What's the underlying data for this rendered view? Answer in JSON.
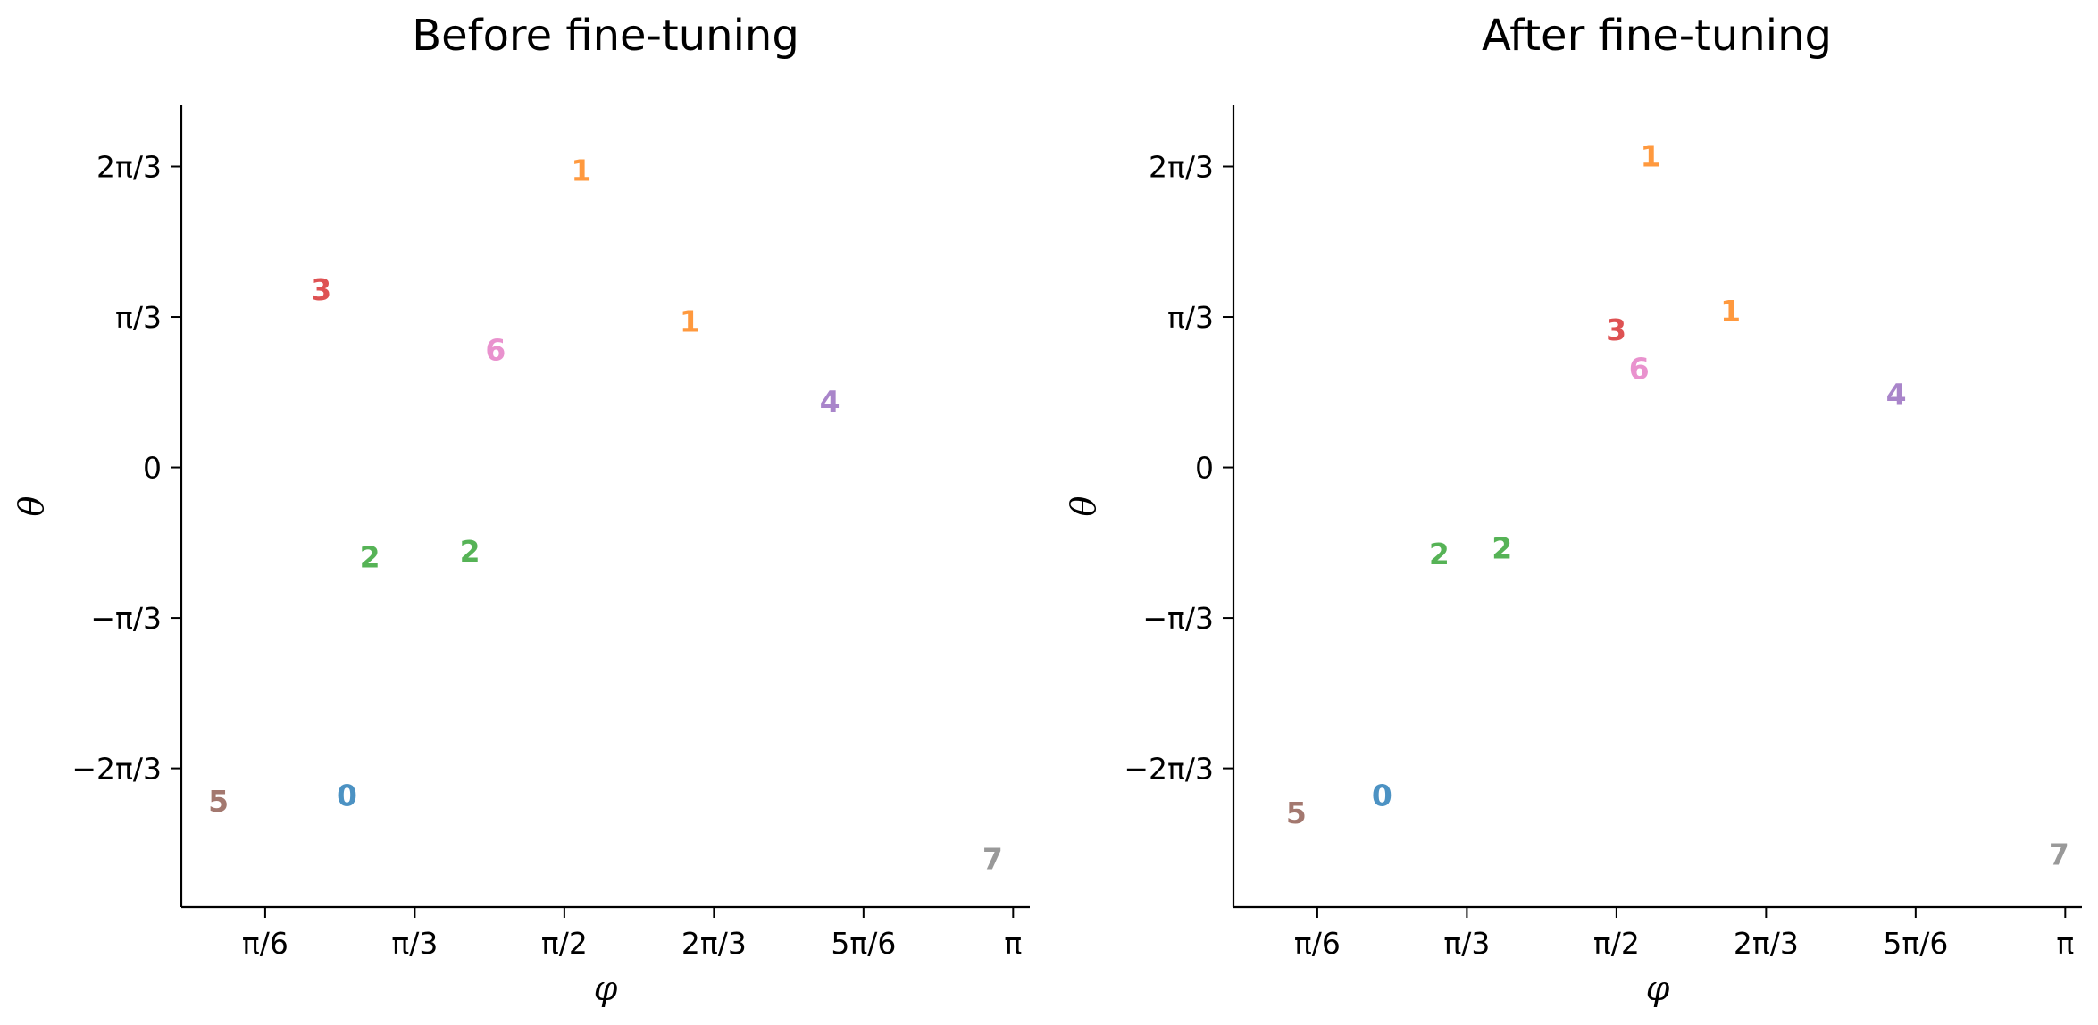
{
  "chart_data": [
    {
      "type": "scatter",
      "title": "Before fine-tuning",
      "xlabel": "φ",
      "ylabel": "θ",
      "xlim": [
        0.23,
        3.2
      ],
      "ylim": [
        -3.06,
        2.52
      ],
      "xticks": [
        {
          "value": 0.5236,
          "label": "π/6"
        },
        {
          "value": 1.0472,
          "label": "π/3"
        },
        {
          "value": 1.5708,
          "label": "π/2"
        },
        {
          "value": 2.0944,
          "label": "2π/3"
        },
        {
          "value": 2.618,
          "label": "5π/6"
        },
        {
          "value": 3.1416,
          "label": "π"
        }
      ],
      "yticks": [
        {
          "value": 2.0944,
          "label": "2π/3"
        },
        {
          "value": 1.0472,
          "label": "π/3"
        },
        {
          "value": 0,
          "label": "0"
        },
        {
          "value": -1.0472,
          "label": "−π/3"
        },
        {
          "value": -2.0944,
          "label": "−2π/3"
        }
      ],
      "grid": false,
      "points": [
        {
          "label": "1",
          "x": 1.63,
          "y": 2.07,
          "color": "#ff7f0e"
        },
        {
          "label": "3",
          "x": 0.72,
          "y": 1.24,
          "color": "#d62728"
        },
        {
          "label": "1",
          "x": 2.01,
          "y": 1.02,
          "color": "#ff7f0e"
        },
        {
          "label": "6",
          "x": 1.33,
          "y": 0.82,
          "color": "#e377c2"
        },
        {
          "label": "4",
          "x": 2.5,
          "y": 0.46,
          "color": "#9467bd"
        },
        {
          "label": "2",
          "x": 0.89,
          "y": -0.62,
          "color": "#2ca02c"
        },
        {
          "label": "2",
          "x": 1.24,
          "y": -0.58,
          "color": "#2ca02c"
        },
        {
          "label": "5",
          "x": 0.36,
          "y": -2.32,
          "color": "#8c564b"
        },
        {
          "label": "0",
          "x": 0.81,
          "y": -2.28,
          "color": "#1f77b4"
        },
        {
          "label": "7",
          "x": 3.07,
          "y": -2.72,
          "color": "#7f7f7f"
        }
      ]
    },
    {
      "type": "scatter",
      "title": "After fine-tuning",
      "xlabel": "φ",
      "ylabel": "θ",
      "xlim": [
        0.23,
        3.2
      ],
      "ylim": [
        -3.06,
        2.52
      ],
      "xticks": [
        {
          "value": 0.5236,
          "label": "π/6"
        },
        {
          "value": 1.0472,
          "label": "π/3"
        },
        {
          "value": 1.5708,
          "label": "π/2"
        },
        {
          "value": 2.0944,
          "label": "2π/3"
        },
        {
          "value": 2.618,
          "label": "5π/6"
        },
        {
          "value": 3.1416,
          "label": "π"
        }
      ],
      "yticks": [
        {
          "value": 2.0944,
          "label": "2π/3"
        },
        {
          "value": 1.0472,
          "label": "π/3"
        },
        {
          "value": 0,
          "label": "0"
        },
        {
          "value": -1.0472,
          "label": "−π/3"
        },
        {
          "value": -2.0944,
          "label": "−2π/3"
        }
      ],
      "grid": false,
      "points": [
        {
          "label": "1",
          "x": 1.69,
          "y": 2.17,
          "color": "#ff7f0e"
        },
        {
          "label": "1",
          "x": 1.97,
          "y": 1.09,
          "color": "#ff7f0e"
        },
        {
          "label": "3",
          "x": 1.57,
          "y": 0.96,
          "color": "#d62728"
        },
        {
          "label": "6",
          "x": 1.65,
          "y": 0.69,
          "color": "#e377c2"
        },
        {
          "label": "4",
          "x": 2.55,
          "y": 0.51,
          "color": "#9467bd"
        },
        {
          "label": "2",
          "x": 0.95,
          "y": -0.6,
          "color": "#2ca02c"
        },
        {
          "label": "2",
          "x": 1.17,
          "y": -0.56,
          "color": "#2ca02c"
        },
        {
          "label": "5",
          "x": 0.45,
          "y": -2.4,
          "color": "#8c564b"
        },
        {
          "label": "0",
          "x": 0.75,
          "y": -2.28,
          "color": "#1f77b4"
        },
        {
          "label": "7",
          "x": 3.12,
          "y": -2.69,
          "color": "#7f7f7f"
        }
      ]
    }
  ]
}
